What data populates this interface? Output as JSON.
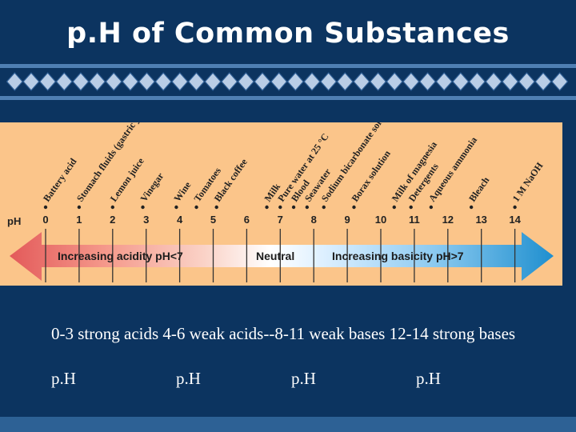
{
  "slide": {
    "title": "p.H of Common Substances",
    "caption": "0-3 strong acids 4-6 weak acids--8-11 weak bases 12-14 strong bases",
    "ph_labels": [
      "p.H",
      "p.H",
      "p.H",
      "p.H"
    ]
  },
  "scale": {
    "axis_label": "pH",
    "ticks": [
      "0",
      "1",
      "2",
      "3",
      "4",
      "5",
      "6",
      "7",
      "8",
      "9",
      "10",
      "11",
      "12",
      "13",
      "14"
    ],
    "substances": [
      {
        "name": "Battery acid",
        "ph": 0
      },
      {
        "name": "Stomach fluids (gastric juice)",
        "ph": 1
      },
      {
        "name": "Lemon juice",
        "ph": 2
      },
      {
        "name": "Vinegar",
        "ph": 2.9
      },
      {
        "name": "Wine",
        "ph": 3.9
      },
      {
        "name": "Tomatoes",
        "ph": 4.5
      },
      {
        "name": "Black coffee",
        "ph": 5.1
      },
      {
        "name": "Milk",
        "ph": 6.6
      },
      {
        "name": "Pure water at 25 °C",
        "ph": 7.0
      },
      {
        "name": "Blood",
        "ph": 7.4
      },
      {
        "name": "Seawater",
        "ph": 7.8
      },
      {
        "name": "Sodium bicarbonate solution",
        "ph": 8.3
      },
      {
        "name": "Borax solution",
        "ph": 9.2
      },
      {
        "name": "Milk of magnesia",
        "ph": 10.4
      },
      {
        "name": "Detergents",
        "ph": 10.9
      },
      {
        "name": "Aqueous ammonia",
        "ph": 11.5
      },
      {
        "name": "Bleach",
        "ph": 12.7
      },
      {
        "name": "1 M NaOH",
        "ph": 14
      }
    ],
    "left_label": "Increasing acidity pH<7",
    "center_label": "Neutral",
    "right_label": "Increasing basicity pH>7"
  },
  "colors": {
    "background": "#0c3460",
    "panel": "#fbc58a",
    "acid_red": "#e6736a",
    "base_blue": "#2d9ad0",
    "band": "#4f7fb3"
  }
}
